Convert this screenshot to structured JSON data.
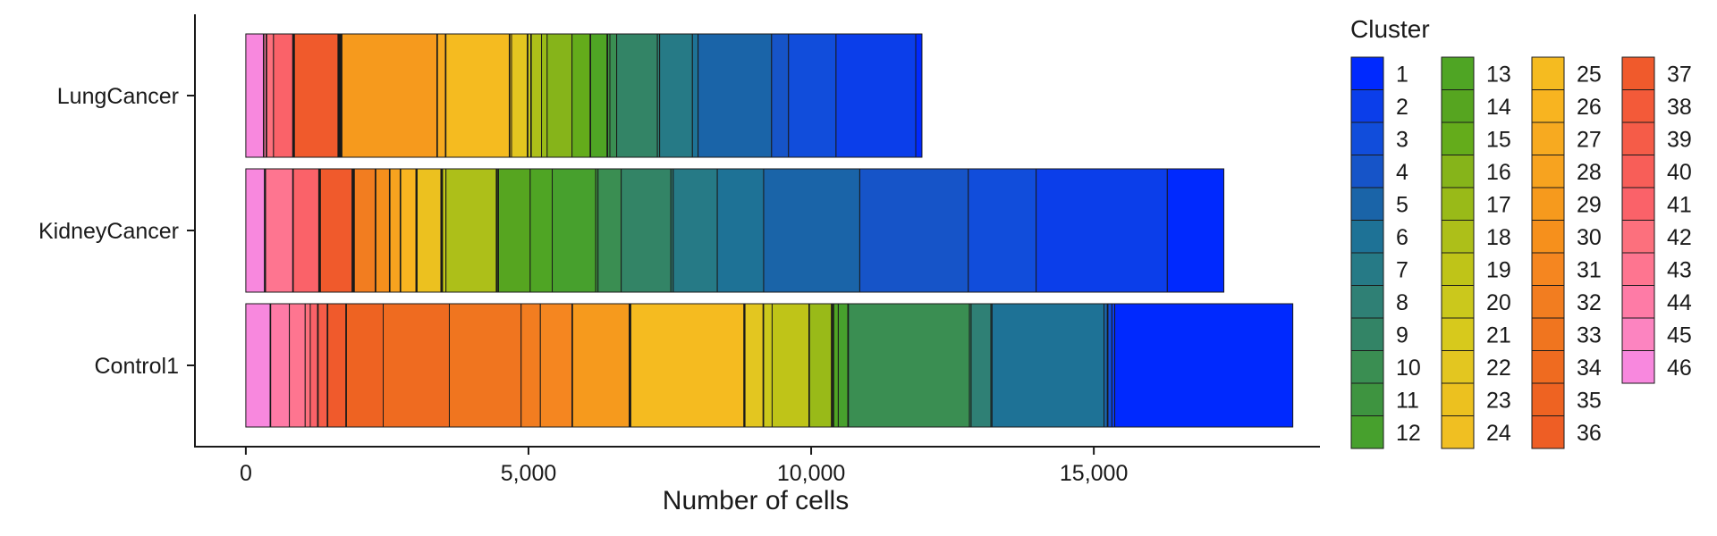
{
  "chart_data": {
    "type": "bar",
    "orientation": "horizontal",
    "stacked": true,
    "xlabel": "Number of cells",
    "ylabel": "",
    "xlim": [
      -900,
      19000
    ],
    "x_ticks": [
      0,
      5000,
      10000,
      15000
    ],
    "x_tick_labels": [
      "0",
      "5,000",
      "10,000",
      "15,000"
    ],
    "categories": [
      "LungCancer",
      "KidneyCancer",
      "Control1"
    ],
    "legend": {
      "title": "Cluster",
      "placement": "right",
      "columns": 4
    },
    "clusters": [
      {
        "name": "1",
        "color": "#0029FE",
        "values": [
          110,
          1000,
          3150
        ]
      },
      {
        "name": "2",
        "color": "#0B3EEA",
        "values": [
          1410,
          2320,
          50
        ]
      },
      {
        "name": "3",
        "color": "#114DDB",
        "values": [
          840,
          1200,
          70
        ]
      },
      {
        "name": "4",
        "color": "#1654C8",
        "values": [
          300,
          1920,
          10
        ]
      },
      {
        "name": "5",
        "color": "#1A64A8",
        "values": [
          1300,
          1700,
          60
        ]
      },
      {
        "name": "6",
        "color": "#1E7296",
        "values": [
          100,
          820,
          1980
        ]
      },
      {
        "name": "7",
        "color": "#267A86",
        "values": [
          580,
          780,
          20
        ]
      },
      {
        "name": "8",
        "color": "#2F8075",
        "values": [
          40,
          40,
          350
        ]
      },
      {
        "name": "9",
        "color": "#338466",
        "values": [
          720,
          880,
          30
        ]
      },
      {
        "name": "10",
        "color": "#3A8E52",
        "values": [
          120,
          410,
          2140
        ]
      },
      {
        "name": "11",
        "color": "#3E9440",
        "values": [
          40,
          40,
          10
        ]
      },
      {
        "name": "12",
        "color": "#47A02D",
        "values": [
          10,
          770,
          170
        ]
      },
      {
        "name": "13",
        "color": "#4FA524",
        "values": [
          290,
          390,
          80
        ]
      },
      {
        "name": "14",
        "color": "#56A520",
        "values": [
          10,
          560,
          20
        ]
      },
      {
        "name": "15",
        "color": "#64AC1B",
        "values": [
          320,
          20,
          10
        ]
      },
      {
        "name": "16",
        "color": "#86B41A",
        "values": [
          440,
          10,
          10
        ]
      },
      {
        "name": "17",
        "color": "#99BA18",
        "values": [
          100,
          10,
          390
        ]
      },
      {
        "name": "18",
        "color": "#ADBF19",
        "values": [
          180,
          890,
          10
        ]
      },
      {
        "name": "19",
        "color": "#BFC418",
        "values": [
          10,
          60,
          650
        ]
      },
      {
        "name": "20",
        "color": "#CBC81C",
        "values": [
          50,
          10,
          150
        ]
      },
      {
        "name": "21",
        "color": "#D7C91C",
        "values": [
          10,
          10,
          10
        ]
      },
      {
        "name": "22",
        "color": "#E3C620",
        "values": [
          280,
          10,
          320
        ]
      },
      {
        "name": "23",
        "color": "#ECC11F",
        "values": [
          30,
          420,
          10
        ]
      },
      {
        "name": "24",
        "color": "#F0BF22",
        "values": [
          10,
          10,
          10
        ]
      },
      {
        "name": "25",
        "color": "#F5BB20",
        "values": [
          1120,
          10,
          2000
        ]
      },
      {
        "name": "26",
        "color": "#F8B420",
        "values": [
          10,
          270,
          10
        ]
      },
      {
        "name": "27",
        "color": "#F7AA20",
        "values": [
          140,
          10,
          10
        ]
      },
      {
        "name": "28",
        "color": "#F7A31F",
        "values": [
          10,
          180,
          10
        ]
      },
      {
        "name": "29",
        "color": "#F69A1D",
        "values": [
          1680,
          10,
          1000
        ]
      },
      {
        "name": "30",
        "color": "#F6901C",
        "values": [
          10,
          240,
          10
        ]
      },
      {
        "name": "31",
        "color": "#F58620",
        "values": [
          10,
          10,
          560
        ]
      },
      {
        "name": "32",
        "color": "#F27D20",
        "values": [
          10,
          370,
          340
        ]
      },
      {
        "name": "33",
        "color": "#F0751F",
        "values": [
          10,
          10,
          1270
        ]
      },
      {
        "name": "34",
        "color": "#EF6B20",
        "values": [
          10,
          10,
          1170
        ]
      },
      {
        "name": "35",
        "color": "#EE6322",
        "values": [
          10,
          10,
          650
        ]
      },
      {
        "name": "36",
        "color": "#EE5E25",
        "values": [
          10,
          10,
          10
        ]
      },
      {
        "name": "37",
        "color": "#F05A2C",
        "values": [
          770,
          560,
          320
        ]
      },
      {
        "name": "38",
        "color": "#F35A39",
        "values": [
          10,
          10,
          10
        ]
      },
      {
        "name": "39",
        "color": "#F55C48",
        "values": [
          10,
          10,
          160
        ]
      },
      {
        "name": "40",
        "color": "#F85E58",
        "values": [
          10,
          10,
          10
        ]
      },
      {
        "name": "41",
        "color": "#FA6269",
        "values": [
          340,
          450,
          130
        ]
      },
      {
        "name": "42",
        "color": "#FC707D",
        "values": [
          120,
          10,
          90
        ]
      },
      {
        "name": "43",
        "color": "#FE7590",
        "values": [
          10,
          480,
          280
        ]
      },
      {
        "name": "44",
        "color": "#FE7BA6",
        "values": [
          40,
          10,
          330
        ]
      },
      {
        "name": "45",
        "color": "#FC84C0",
        "values": [
          10,
          10,
          10
        ]
      },
      {
        "name": "46",
        "color": "#F888DE",
        "values": [
          310,
          330,
          430
        ]
      }
    ]
  }
}
